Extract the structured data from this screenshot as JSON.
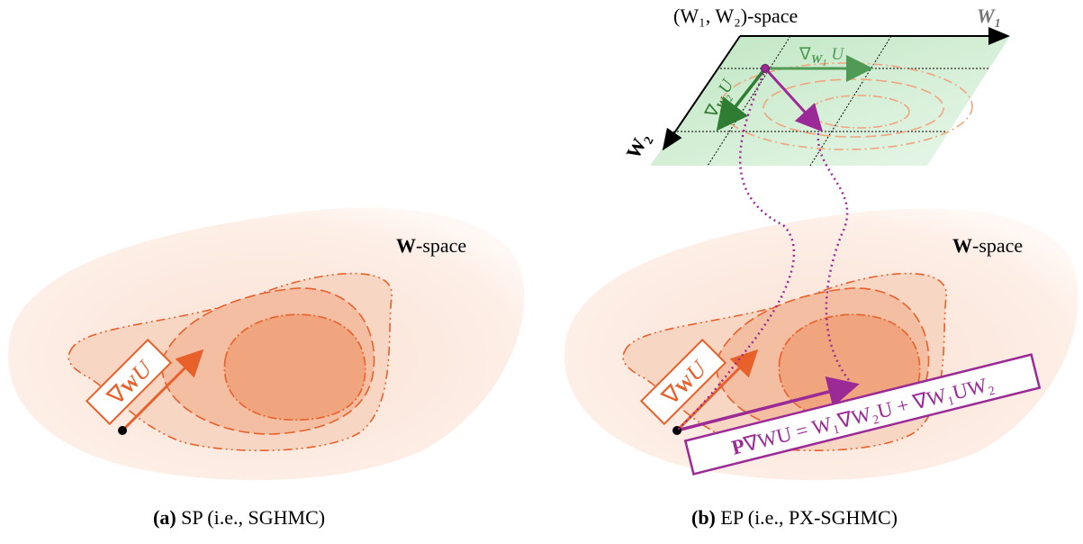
{
  "panel_a": {
    "space_label_bold": "W",
    "space_label_rest": "-space",
    "gradient_box": "∇",
    "gradient_box_bold": "W",
    "gradient_box_rest": "U",
    "caption_tag": "(a)",
    "caption_text": " SP (i.e., SGHMC)"
  },
  "panel_b": {
    "space_label_bold": "W",
    "space_label_rest": "-space",
    "gradient_box": "∇",
    "gradient_box_bold": "W",
    "gradient_box_rest": "U",
    "top_space_label": "(W₁, W₂)-space",
    "axis_w1": "W",
    "axis_w1_sub": "1",
    "axis_w2": "W",
    "axis_w2_sub": "2",
    "grad_w1": "∇",
    "grad_w1_bold": "W",
    "grad_w1_sub": "1",
    "grad_w1_rest": " U",
    "grad_w2": "∇",
    "grad_w2_bold": "W",
    "grad_w2_sub": "2",
    "grad_w2_rest": "U",
    "projected_formula_p": "P",
    "projected_formula_rest": "∇WU = W₁∇W₂U + ∇W₁UW₂",
    "caption_tag": "(b)",
    "caption_text": " EP (i.e., PX-SGHMC)"
  },
  "colors": {
    "orange": "#e8602a",
    "orange_light": "#fbe3d7",
    "orange_mid": "#f6c6ad",
    "orange_dark": "#efa07a",
    "green": "#2e7d32",
    "green_plane": "#cdeccf",
    "purple": "#9c2a96"
  }
}
